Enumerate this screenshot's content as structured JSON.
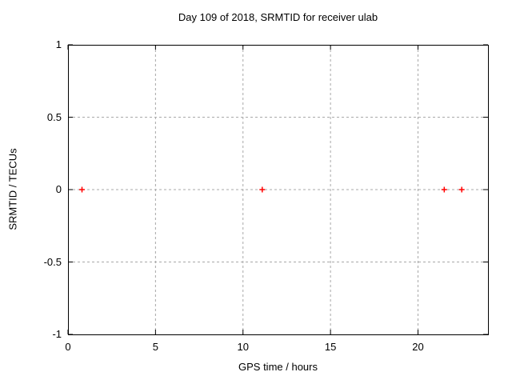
{
  "chart_data": {
    "type": "scatter",
    "title": "Day 109 of 2018, SRMTID for receiver ulab",
    "xlabel": "GPS time / hours",
    "ylabel": "SRMTID / TECUs",
    "xlim": [
      0,
      24
    ],
    "ylim": [
      -1,
      1
    ],
    "xticks": {
      "values": [
        0,
        5,
        10,
        15,
        20
      ],
      "labels": [
        "0",
        "5",
        "10",
        "15",
        "20"
      ]
    },
    "yticks": {
      "values": [
        1,
        0.5,
        0,
        -0.5,
        -1
      ],
      "labels": [
        "1",
        "0.5",
        "0",
        "-0.5",
        "-1"
      ]
    },
    "grid": true,
    "legend_position": "none",
    "series": [
      {
        "name": "SRMTID",
        "marker": "plus",
        "color": "#ff0000",
        "points": [
          {
            "x": 0.8,
            "y": 0
          },
          {
            "x": 11.1,
            "y": 0
          },
          {
            "x": 21.5,
            "y": 0
          },
          {
            "x": 22.5,
            "y": 0
          }
        ]
      }
    ],
    "colors": {
      "background": "#ffffff",
      "axis": "#000000",
      "grid": "#a8a8a8",
      "tick_text": "#000000"
    }
  }
}
